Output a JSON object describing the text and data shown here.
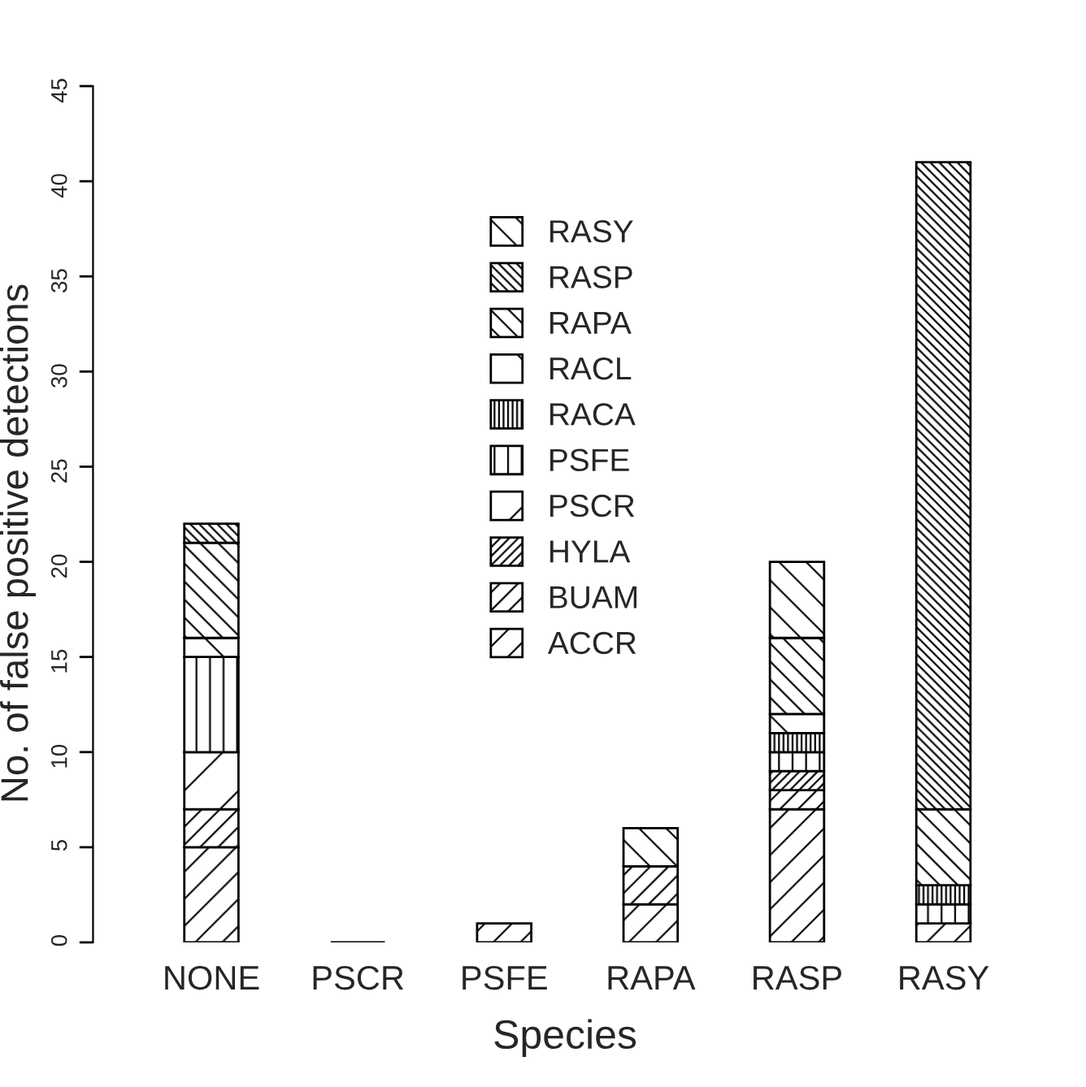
{
  "chart_data": {
    "type": "bar",
    "stacked": true,
    "xlabel": "Species",
    "ylabel": "No. of false positive detections",
    "categories": [
      "NONE",
      "PSCR",
      "PSFE",
      "RAPA",
      "RASP",
      "RASY"
    ],
    "series": [
      {
        "name": "ACCR",
        "color": "#000000",
        "values": [
          5,
          0,
          1,
          2,
          7,
          1
        ]
      },
      {
        "name": "BUAM",
        "color": "#000000",
        "values": [
          2,
          0,
          0,
          2,
          1,
          0
        ]
      },
      {
        "name": "HYLA",
        "color": "#000000",
        "values": [
          0,
          0,
          0,
          0,
          1,
          0
        ]
      },
      {
        "name": "PSCR",
        "color": "#000000",
        "values": [
          3,
          0,
          0,
          0,
          0,
          0
        ]
      },
      {
        "name": "PSFE",
        "color": "#000000",
        "values": [
          5,
          0,
          0,
          0,
          1,
          1
        ]
      },
      {
        "name": "RACA",
        "color": "#000000",
        "values": [
          0,
          0,
          0,
          0,
          1,
          1
        ]
      },
      {
        "name": "RACL",
        "color": "#000000",
        "values": [
          1,
          0,
          0,
          0,
          1,
          0
        ]
      },
      {
        "name": "RAPA",
        "color": "#000000",
        "values": [
          5,
          0,
          0,
          0,
          4,
          4
        ]
      },
      {
        "name": "RASP",
        "color": "#000000",
        "values": [
          1,
          0,
          0,
          0,
          0,
          34
        ]
      },
      {
        "name": "RASY",
        "color": "#000000",
        "values": [
          0,
          0,
          0,
          2,
          4,
          0
        ]
      }
    ],
    "ylim": [
      0,
      45
    ],
    "yticks": [
      0,
      5,
      10,
      15,
      20,
      25,
      30,
      35,
      40,
      45
    ],
    "grid": false,
    "legend": "top"
  }
}
